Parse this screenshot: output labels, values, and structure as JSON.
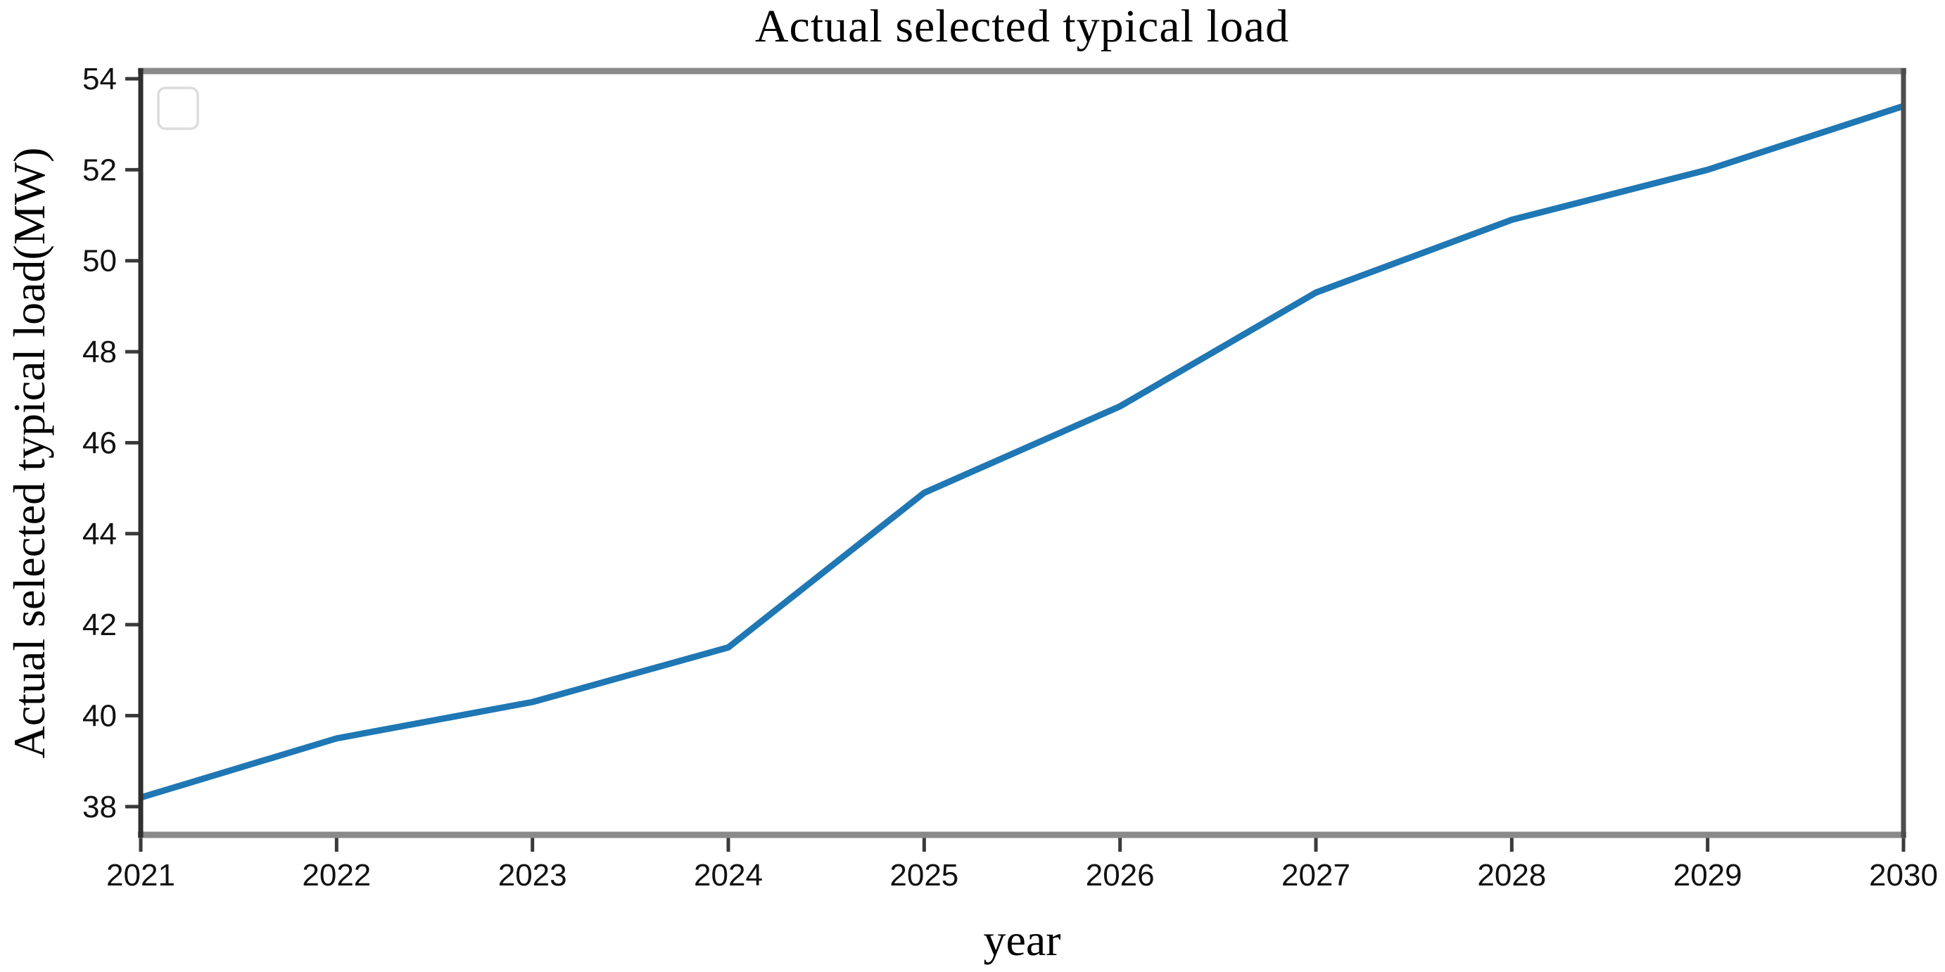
{
  "figure": {
    "title": "Actual selected typical load",
    "x_axis_label": "year",
    "y_axis_label": "Actual selected typical load(MW)"
  },
  "chart_data": {
    "type": "line",
    "title": "Actual selected typical load",
    "xlabel": "year",
    "ylabel": "Actual selected typical load(MW)",
    "x": [
      2021,
      2022,
      2023,
      2024,
      2025,
      2026,
      2027,
      2028,
      2029,
      2030
    ],
    "series": [
      {
        "name": "Actual selected typical load",
        "values": [
          38.2,
          39.5,
          40.3,
          41.5,
          44.9,
          46.8,
          49.3,
          50.9,
          52.0,
          53.4
        ]
      }
    ],
    "x_ticks": [
      "2021",
      "2022",
      "2023",
      "2024",
      "2025",
      "2026",
      "2027",
      "2028",
      "2029",
      "2030"
    ],
    "y_ticks": [
      "38",
      "40",
      "42",
      "44",
      "46",
      "48",
      "50",
      "52",
      "54"
    ],
    "y_tick_values": [
      38,
      40,
      42,
      44,
      46,
      48,
      50,
      52,
      54
    ],
    "xlim": [
      2021,
      2030
    ],
    "ylim": [
      37.38,
      54.17
    ],
    "grid": false,
    "legend_position": "upper-left",
    "legend_empty": true,
    "colors": {
      "line": "#1f77b4",
      "spine_light": "#8a8a8a",
      "spine_left": "#2f2f2f",
      "spine_right": "#4d4d4d",
      "tick_mark": "#3a3a3a",
      "tick_text": "#111111",
      "legend_border": "#dcdcdc",
      "background": "#ffffff"
    }
  }
}
